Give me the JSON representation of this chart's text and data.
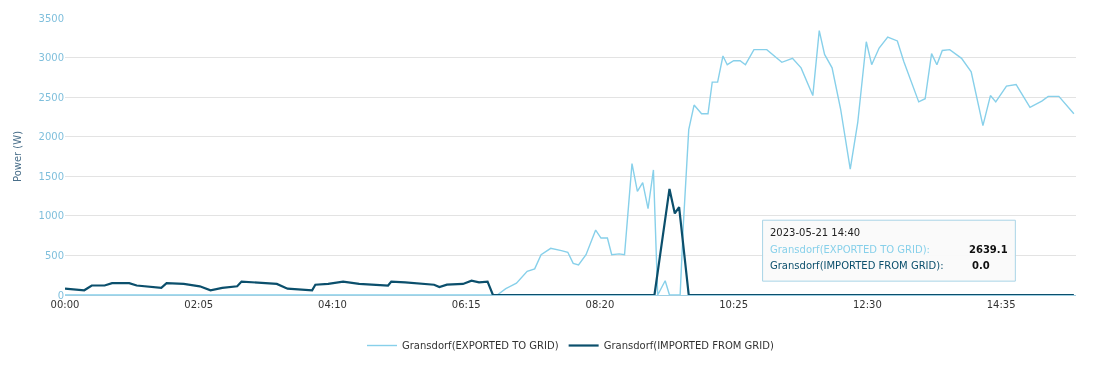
{
  "chart_data": {
    "type": "line",
    "ylabel": "Power (W)",
    "xlim": [
      0,
      15.75
    ],
    "ylim": [
      0,
      3500
    ],
    "xticks": [
      {
        "value": 0,
        "label": "00:00"
      },
      {
        "value": 2.0833333,
        "label": "02:05"
      },
      {
        "value": 4.1666667,
        "label": "04:10"
      },
      {
        "value": 6.25,
        "label": "06:15"
      },
      {
        "value": 8.3333333,
        "label": "08:20"
      },
      {
        "value": 10.4166667,
        "label": "10:25"
      },
      {
        "value": 12.5,
        "label": "12:30"
      },
      {
        "value": 14.5833333,
        "label": "14:35"
      }
    ],
    "yticks": [
      0,
      500,
      1000,
      1500,
      2000,
      2500,
      3000,
      3500
    ],
    "grid": "y",
    "legend": "bottom",
    "marker": "none",
    "line_style": "solid",
    "series": [
      {
        "name": "Gransdorf(EXPORTED TO GRID)",
        "color": "#87d0ea",
        "x": [
          0,
          6.733,
          6.867,
          7.033,
          7.2,
          7.317,
          7.417,
          7.567,
          7.733,
          7.833,
          7.917,
          8,
          8.117,
          8.267,
          8.35,
          8.45,
          8.517,
          8.633,
          8.717,
          8.833,
          8.917,
          9,
          9.083,
          9.167,
          9.233,
          9.35,
          9.417,
          9.583,
          9.633,
          9.717,
          9.8,
          9.917,
          10.017,
          10.083,
          10.167,
          10.25,
          10.317,
          10.417,
          10.517,
          10.6,
          10.733,
          10.933,
          11.167,
          11.333,
          11.467,
          11.65,
          11.75,
          11.833,
          11.95,
          12.083,
          12.233,
          12.35,
          12.483,
          12.567,
          12.683,
          12.817,
          12.967,
          13.067,
          13.3,
          13.4,
          13.5,
          13.583,
          13.667,
          13.783,
          13.967,
          14.117,
          14.3,
          14.417,
          14.5,
          14.667,
          14.817,
          15.033,
          15.217,
          15.317,
          15.483,
          15.717
        ],
        "values": [
          0,
          0,
          80,
          150,
          300,
          330,
          510,
          590,
          560,
          540,
          400,
          380,
          510,
          820,
          720,
          720,
          510,
          520,
          510,
          1660,
          1310,
          1420,
          1090,
          1580,
          0,
          180,
          0,
          0,
          890,
          2090,
          2400,
          2290,
          2290,
          2690,
          2690,
          3020,
          2910,
          2960,
          2960,
          2910,
          3100,
          3100,
          2940,
          2990,
          2870,
          2520,
          3340,
          3040,
          2870,
          2350,
          1590,
          2180,
          3200,
          2910,
          3120,
          3260,
          3210,
          2950,
          2440,
          2480,
          3050,
          2910,
          3090,
          3100,
          2990,
          2820,
          2140,
          2520,
          2440,
          2639.1,
          2660,
          2370,
          2450,
          2510,
          2510,
          2290
        ]
      },
      {
        "name": "Gransdorf(IMPORTED FROM GRID)",
        "color": "#0b4f6c",
        "x": [
          0,
          0.3,
          0.417,
          0.617,
          0.733,
          1,
          1.117,
          1.5,
          1.583,
          1.85,
          2.1,
          2.267,
          2.45,
          2.683,
          2.75,
          3.3,
          3.467,
          3.85,
          3.9,
          4.1,
          4.333,
          4.583,
          5.033,
          5.083,
          5.3,
          5.75,
          5.833,
          5.95,
          6.2,
          6.333,
          6.45,
          6.583,
          6.667,
          9.183,
          9.417,
          9.5,
          9.567,
          9.717,
          15.717
        ],
        "values": [
          80,
          60,
          120,
          120,
          150,
          150,
          120,
          90,
          150,
          140,
          110,
          60,
          90,
          110,
          170,
          140,
          80,
          60,
          130,
          140,
          170,
          140,
          120,
          170,
          160,
          130,
          100,
          130,
          140,
          180,
          160,
          170,
          0,
          0,
          1340,
          1030,
          1110,
          0,
          0
        ]
      }
    ],
    "annotations": [
      "2023-05-21 14:40",
      "Gransdorf(EXPORTED TO GRID):",
      "2639.1",
      "Gransdorf(IMPORTED FROM GRID):",
      "0.0"
    ]
  }
}
